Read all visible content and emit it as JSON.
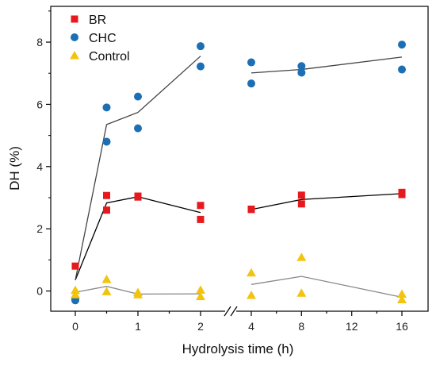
{
  "chart_data": {
    "type": "scatter",
    "xlabel": "Hydrolysis time (h)",
    "ylabel": "DH (%)",
    "ylim": [
      -0.65,
      9.15
    ],
    "ytick_values": [
      0,
      2,
      4,
      6,
      8
    ],
    "ytick_labels": [
      "0",
      "2",
      "4",
      "6",
      "8"
    ],
    "xticks": [
      {
        "label": "0",
        "major": true
      },
      {
        "label": "",
        "major": false
      },
      {
        "label": "1",
        "major": true
      },
      {
        "label": "",
        "major": false
      },
      {
        "label": "2",
        "major": true
      },
      {
        "label": "4",
        "major": true
      },
      {
        "label": "",
        "major": false
      },
      {
        "label": "8",
        "major": true
      },
      {
        "label": "",
        "major": false
      },
      {
        "label": "12",
        "major": true
      },
      {
        "label": "",
        "major": false
      },
      {
        "label": "16",
        "major": true
      }
    ],
    "axis_break": "between 2 and 4 h",
    "legend_position": "top-left",
    "series": [
      {
        "name": "BR",
        "marker": "square",
        "color": "#e8191c",
        "line_color": "#000000",
        "points": [
          {
            "x": 0,
            "y": 0.8
          },
          {
            "x": 0.5,
            "y": 3.07
          },
          {
            "x": 0.5,
            "y": 2.6
          },
          {
            "x": 1,
            "y": 3.02
          },
          {
            "x": 1,
            "y": 3.05
          },
          {
            "x": 2,
            "y": 2.75
          },
          {
            "x": 2,
            "y": 2.3
          },
          {
            "x": 4,
            "y": 2.63
          },
          {
            "x": 4,
            "y": 2.62
          },
          {
            "x": 8,
            "y": 3.08
          },
          {
            "x": 8,
            "y": 2.8
          },
          {
            "x": 16,
            "y": 3.17
          },
          {
            "x": 16,
            "y": 3.1
          }
        ],
        "line": [
          {
            "x": 0,
            "y": 0.35
          },
          {
            "x": 0.5,
            "y": 2.83
          },
          {
            "x": 1,
            "y": 3.03
          },
          {
            "x": 2,
            "y": 2.52
          },
          {
            "x": 4,
            "y": 2.62
          },
          {
            "x": 8,
            "y": 2.94
          },
          {
            "x": 16,
            "y": 3.13
          }
        ]
      },
      {
        "name": "CHC",
        "marker": "circle",
        "color": "#1c6fb4",
        "line_color": "#444444",
        "points": [
          {
            "x": 0,
            "y": -0.3
          },
          {
            "x": 0,
            "y": -0.25
          },
          {
            "x": 0.5,
            "y": 5.9
          },
          {
            "x": 0.5,
            "y": 4.8
          },
          {
            "x": 1,
            "y": 6.25
          },
          {
            "x": 1,
            "y": 5.23
          },
          {
            "x": 2,
            "y": 7.87
          },
          {
            "x": 2,
            "y": 7.22
          },
          {
            "x": 4,
            "y": 7.35
          },
          {
            "x": 4,
            "y": 6.67
          },
          {
            "x": 8,
            "y": 7.23
          },
          {
            "x": 8,
            "y": 7.02
          },
          {
            "x": 16,
            "y": 7.92
          },
          {
            "x": 16,
            "y": 7.12
          }
        ],
        "line": [
          {
            "x": 0,
            "y": 0.35
          },
          {
            "x": 0.5,
            "y": 5.35
          },
          {
            "x": 1,
            "y": 5.74
          },
          {
            "x": 2,
            "y": 7.55
          },
          {
            "x": 4,
            "y": 7.01
          },
          {
            "x": 8,
            "y": 7.12
          },
          {
            "x": 16,
            "y": 7.52
          }
        ]
      },
      {
        "name": "Control",
        "marker": "triangle",
        "color": "#f2c40f",
        "line_color": "#888888",
        "points": [
          {
            "x": 0,
            "y": 0.02
          },
          {
            "x": 0,
            "y": -0.12
          },
          {
            "x": 0.5,
            "y": 0.37
          },
          {
            "x": 0.5,
            "y": -0.02
          },
          {
            "x": 1,
            "y": -0.05
          },
          {
            "x": 1,
            "y": -0.12
          },
          {
            "x": 2,
            "y": 0.03
          },
          {
            "x": 2,
            "y": -0.18
          },
          {
            "x": 4,
            "y": 0.58
          },
          {
            "x": 4,
            "y": -0.14
          },
          {
            "x": 8,
            "y": 1.08
          },
          {
            "x": 8,
            "y": -0.07
          },
          {
            "x": 16,
            "y": -0.1
          },
          {
            "x": 16,
            "y": -0.28
          }
        ],
        "line": [
          {
            "x": 0,
            "y": -0.04
          },
          {
            "x": 0.5,
            "y": 0.15
          },
          {
            "x": 1,
            "y": -0.1
          },
          {
            "x": 2,
            "y": -0.09
          },
          {
            "x": 4,
            "y": 0.21
          },
          {
            "x": 8,
            "y": 0.47
          },
          {
            "x": 16,
            "y": -0.2
          }
        ]
      }
    ]
  }
}
